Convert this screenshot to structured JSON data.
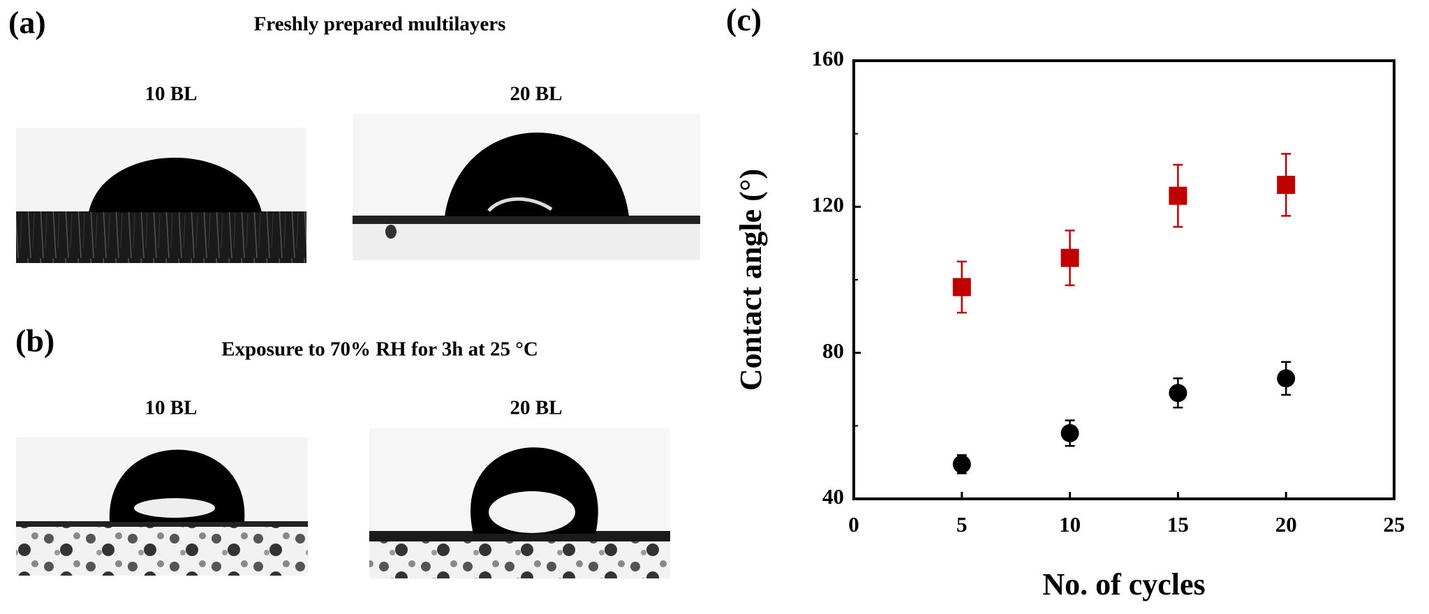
{
  "panel_a": {
    "label": "(a)",
    "title": "Freshly prepared multilayers",
    "left": "10 BL",
    "right": "20 BL"
  },
  "panel_b": {
    "label": "(b)",
    "title": "Exposure to 70% RH for 3h at 25 °C",
    "left": "10 BL",
    "right": "20 BL"
  },
  "chart_data": {
    "type": "scatter",
    "panel_label": "(c)",
    "x_label": "No. of cycles",
    "y_label": "Contact angle (°)",
    "x": [
      5,
      10,
      15,
      20
    ],
    "series": [
      {
        "color": "#c00000",
        "marker": "square",
        "values": [
          98,
          106,
          123,
          126
        ],
        "errors": [
          7,
          7.5,
          8.5,
          8.5
        ]
      },
      {
        "color": "#000000",
        "marker": "circle",
        "values": [
          49.5,
          58,
          69,
          73
        ],
        "errors": [
          2.5,
          3.5,
          4,
          4.5
        ]
      }
    ],
    "xlim": [
      0,
      25
    ],
    "xticks": [
      0,
      5,
      10,
      15,
      20,
      25
    ],
    "ylim": [
      40,
      160
    ],
    "yticks": [
      40,
      80,
      120,
      160
    ],
    "yminor_ticks": [
      60,
      100,
      140
    ]
  }
}
